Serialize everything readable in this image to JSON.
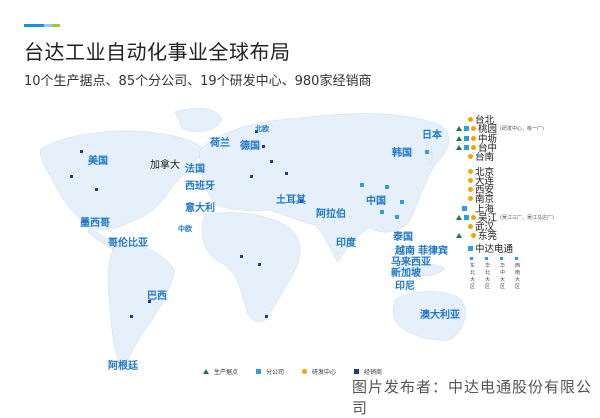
{
  "header": {
    "accent_colors": [
      "#1a8ee0",
      "#8fd0f0",
      "#9ccc2a"
    ],
    "title": "台达工业自动化事业全球布局",
    "subtitle": "10个生产据点、85个分公司、19个研发中心、980家经销商"
  },
  "map": {
    "land_color": "#e6f0fa",
    "countries": [
      {
        "name": "美国"
      },
      {
        "name": "加拿大"
      },
      {
        "name": "墨西哥"
      },
      {
        "name": "哥伦比亚"
      },
      {
        "name": "巴西"
      },
      {
        "name": "阿根廷"
      },
      {
        "name": "荷兰"
      },
      {
        "name": "法国"
      },
      {
        "name": "西班牙"
      },
      {
        "name": "意大利"
      },
      {
        "name": "中欧"
      },
      {
        "name": "北欧"
      },
      {
        "name": "德国"
      },
      {
        "name": "土耳其"
      },
      {
        "name": "阿拉伯"
      },
      {
        "name": "中国"
      },
      {
        "name": "韩国"
      },
      {
        "name": "日本"
      },
      {
        "name": "印度"
      },
      {
        "name": "泰国"
      },
      {
        "name": "越南"
      },
      {
        "name": "菲律宾"
      },
      {
        "name": "马来西亚"
      },
      {
        "name": "新加坡"
      },
      {
        "name": "印尼"
      },
      {
        "name": "澳大利亚"
      }
    ]
  },
  "china_sites": [
    {
      "name": "台北",
      "markers": [
        "rd"
      ]
    },
    {
      "name": "桃园",
      "note": "(研发中心、桃一厂)",
      "markers": [
        "plant",
        "branch",
        "rd"
      ]
    },
    {
      "name": "中坜",
      "markers": [
        "plant",
        "branch",
        "rd"
      ]
    },
    {
      "name": "台中",
      "markers": [
        "plant",
        "branch",
        "rd"
      ]
    },
    {
      "name": "台南",
      "markers": [
        "rd"
      ]
    },
    {
      "name": "北京",
      "markers": [
        "rd"
      ]
    },
    {
      "name": "大连",
      "markers": [
        "rd"
      ]
    },
    {
      "name": "西安",
      "markers": [
        "rd"
      ]
    },
    {
      "name": "南京",
      "markers": [
        "rd"
      ]
    },
    {
      "name": "上海",
      "markers": [
        "branch"
      ]
    },
    {
      "name": "吴江",
      "note": "(吴江三厂、吴江马达厂)",
      "markers": [
        "plant",
        "branch",
        "rd"
      ]
    },
    {
      "name": "武汉",
      "markers": [
        "rd"
      ]
    },
    {
      "name": "东莞",
      "markers": [
        "plant",
        "rd"
      ]
    },
    {
      "name": "中达电通",
      "markers": [
        "branch"
      ]
    }
  ],
  "china_regions": [
    "东北大区",
    "华北大区",
    "华中大区",
    "西南大区"
  ],
  "legend": [
    {
      "label": "生产据点",
      "icon": "triangle",
      "color": "#1e7a3a"
    },
    {
      "label": "分公司",
      "icon": "square",
      "color": "#2aa0e0"
    },
    {
      "label": "研发中心",
      "icon": "circle",
      "color": "#f5a300"
    },
    {
      "label": "经销商",
      "icon": "square",
      "color": "#1f3a8a"
    }
  ],
  "publisher": "图片发布者：中达电通股份有限公司"
}
